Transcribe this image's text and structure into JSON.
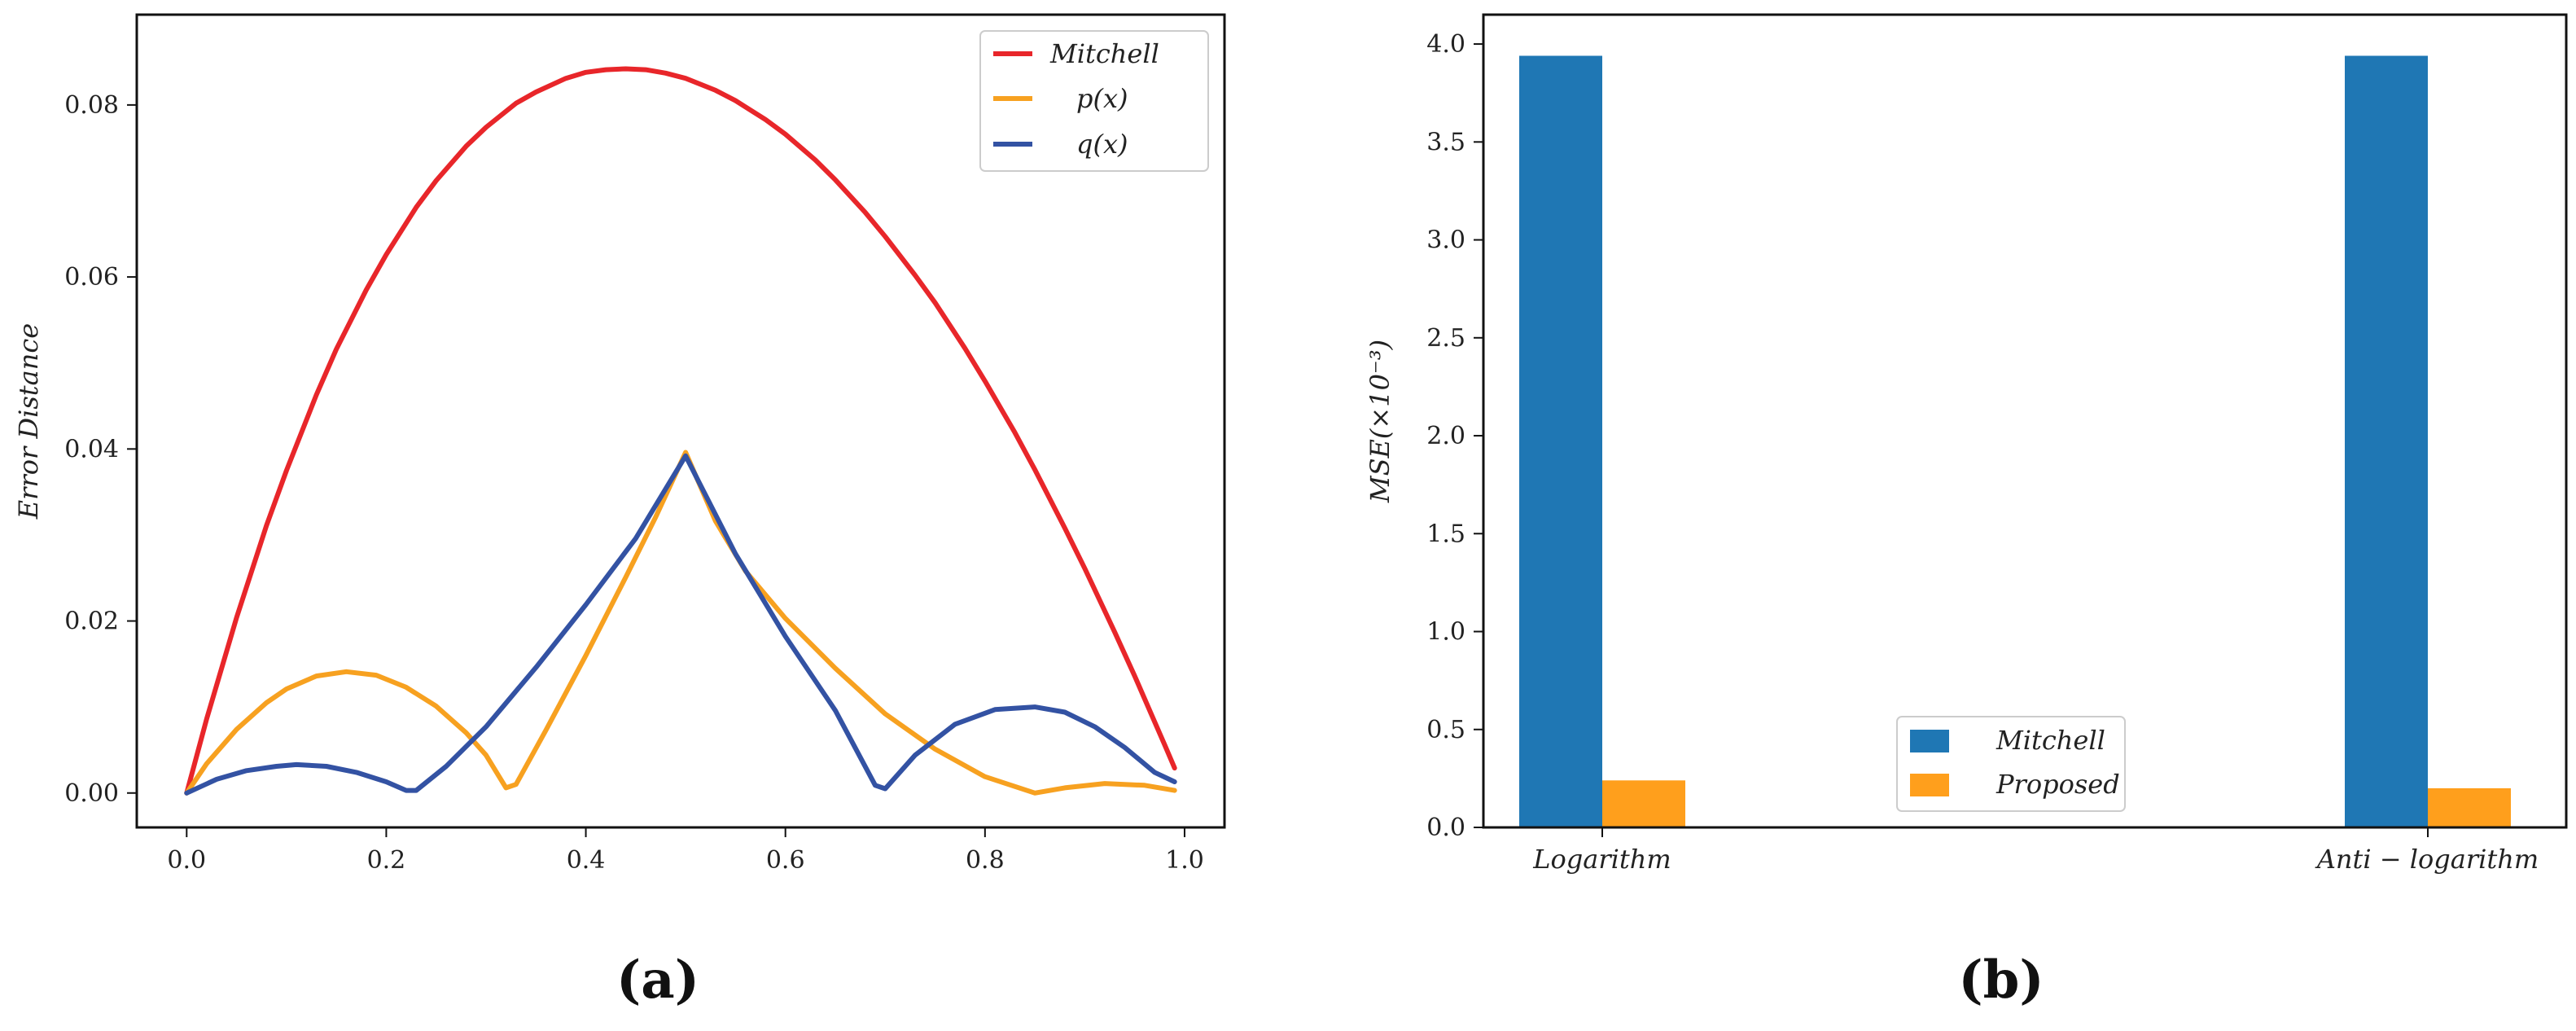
{
  "chart_data": [
    {
      "type": "line",
      "panel_label": "(a)",
      "title": "",
      "xlabel": "",
      "ylabel": "Error Distance",
      "xlim": [
        -0.05,
        1.04
      ],
      "ylim": [
        -0.004,
        0.0905
      ],
      "xticks": [
        0.0,
        0.2,
        0.4,
        0.6,
        0.8,
        1.0
      ],
      "xtick_labels": [
        "0.0",
        "0.2",
        "0.4",
        "0.6",
        "0.8",
        "1.0"
      ],
      "yticks": [
        0.0,
        0.02,
        0.04,
        0.06,
        0.08
      ],
      "ytick_labels": [
        "0.00",
        "0.02",
        "0.04",
        "0.06",
        "0.08"
      ],
      "legend_position": "top-right",
      "series": [
        {
          "name": "Mitchell",
          "color": "#e8262a",
          "x": [
            0.0,
            0.02,
            0.05,
            0.08,
            0.1,
            0.13,
            0.15,
            0.18,
            0.2,
            0.23,
            0.25,
            0.28,
            0.3,
            0.33,
            0.35,
            0.38,
            0.4,
            0.42,
            0.44,
            0.46,
            0.48,
            0.5,
            0.53,
            0.55,
            0.58,
            0.6,
            0.63,
            0.65,
            0.68,
            0.7,
            0.73,
            0.75,
            0.78,
            0.8,
            0.83,
            0.85,
            0.88,
            0.9,
            0.93,
            0.95,
            0.98,
            0.99
          ],
          "y": [
            0.0,
            0.0086,
            0.0204,
            0.0311,
            0.0375,
            0.0463,
            0.0516,
            0.0585,
            0.0626,
            0.0681,
            0.0712,
            0.0752,
            0.0774,
            0.0802,
            0.0815,
            0.0831,
            0.0838,
            0.0841,
            0.0842,
            0.0841,
            0.0837,
            0.0831,
            0.0817,
            0.0805,
            0.0783,
            0.0766,
            0.0736,
            0.0713,
            0.0675,
            0.0647,
            0.0602,
            0.057,
            0.0517,
            0.0479,
            0.0419,
            0.0376,
            0.0308,
            0.0261,
            0.0187,
            0.0136,
            0.0056,
            0.0029
          ]
        },
        {
          "name": "p(x)",
          "color": "#f7a120",
          "x": [
            0.0,
            0.02,
            0.05,
            0.08,
            0.1,
            0.13,
            0.16,
            0.19,
            0.22,
            0.25,
            0.28,
            0.3,
            0.32,
            0.33,
            0.36,
            0.4,
            0.44,
            0.47,
            0.5,
            0.53,
            0.56,
            0.6,
            0.65,
            0.7,
            0.75,
            0.8,
            0.85,
            0.88,
            0.92,
            0.96,
            0.99
          ],
          "y": [
            0.0,
            0.0034,
            0.0074,
            0.0105,
            0.0121,
            0.0136,
            0.0141,
            0.0137,
            0.0123,
            0.0101,
            0.007,
            0.0044,
            0.0006,
            0.001,
            0.0073,
            0.016,
            0.0251,
            0.0321,
            0.0396,
            0.0316,
            0.0258,
            0.0203,
            0.0145,
            0.0092,
            0.0051,
            0.0019,
            0.0,
            0.0006,
            0.0011,
            0.0009,
            0.0003
          ]
        },
        {
          "name": "q(x)",
          "color": "#3352a3",
          "x": [
            0.0,
            0.03,
            0.06,
            0.09,
            0.11,
            0.14,
            0.17,
            0.2,
            0.22,
            0.23,
            0.26,
            0.3,
            0.35,
            0.4,
            0.45,
            0.5,
            0.55,
            0.6,
            0.65,
            0.69,
            0.7,
            0.73,
            0.77,
            0.81,
            0.85,
            0.88,
            0.91,
            0.94,
            0.97,
            0.99
          ],
          "y": [
            0.0,
            0.0016,
            0.0026,
            0.0031,
            0.0033,
            0.0031,
            0.0024,
            0.0013,
            0.0003,
            0.0003,
            0.0031,
            0.0077,
            0.0146,
            0.0219,
            0.0296,
            0.0392,
            0.0278,
            0.0182,
            0.0096,
            0.0009,
            0.0005,
            0.0044,
            0.008,
            0.0097,
            0.01,
            0.0094,
            0.0077,
            0.0053,
            0.0024,
            0.0013
          ]
        }
      ]
    },
    {
      "type": "bar",
      "panel_label": "(b)",
      "title": "",
      "xlabel": "",
      "ylabel": "MSE(×10⁻³)",
      "categories": [
        "Logarithm",
        "Anti − logarithm"
      ],
      "ylim": [
        0,
        4.15
      ],
      "yticks": [
        0.0,
        0.5,
        1.0,
        1.5,
        2.0,
        2.5,
        3.0,
        3.5,
        4.0
      ],
      "ytick_labels": [
        "0.0",
        "0.5",
        "1.0",
        "1.5",
        "2.0",
        "2.5",
        "3.0",
        "3.5",
        "4.0"
      ],
      "legend_position": "bottom-center",
      "series": [
        {
          "name": "Mitchell",
          "color": "#1f77b4",
          "values": [
            3.94,
            3.94
          ]
        },
        {
          "name": "Proposed",
          "color": "#ff9f1c",
          "values": [
            0.24,
            0.2
          ]
        }
      ]
    }
  ]
}
